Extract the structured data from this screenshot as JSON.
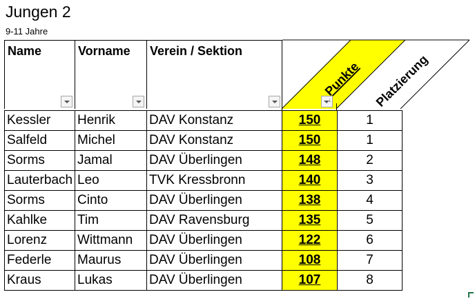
{
  "sheet": {
    "title": "Jungen 2",
    "subtitle": "9-11 Jahre"
  },
  "columns": {
    "name": "Name",
    "vorname": "Vorname",
    "verein": "Verein / Sektion",
    "punkte": "Punkte",
    "platzierung": "Platzierung"
  },
  "colors": {
    "highlight": "#ffff00",
    "grid": "#000000",
    "filter_button": "#f4f4f4"
  },
  "icons": {
    "filter": "dropdown-filter-icon",
    "sorted_filter": "sort-descending-filter-icon"
  },
  "rows": [
    {
      "name": "Kessler",
      "vorname": "Henrik",
      "verein": "DAV Konstanz",
      "punkte": "150",
      "platz": "1"
    },
    {
      "name": "Salfeld",
      "vorname": "Michel",
      "verein": "DAV Konstanz",
      "punkte": "150",
      "platz": "1"
    },
    {
      "name": "Sorms",
      "vorname": "Jamal",
      "verein": "DAV Überlingen",
      "punkte": "148",
      "platz": "2"
    },
    {
      "name": "Lauterbach",
      "vorname": "Leo",
      "verein": "TVK Kressbronn",
      "punkte": "140",
      "platz": "3"
    },
    {
      "name": "Sorms",
      "vorname": "Cinto",
      "verein": "DAV Überlingen",
      "punkte": "138",
      "platz": "4"
    },
    {
      "name": "Kahlke",
      "vorname": "Tim",
      "verein": "DAV Ravensburg",
      "punkte": "135",
      "platz": "5"
    },
    {
      "name": "Lorenz",
      "vorname": "Wittmann",
      "verein": "DAV Überlingen",
      "punkte": "122",
      "platz": "6"
    },
    {
      "name": "Federle",
      "vorname": "Maurus",
      "verein": "DAV Überlingen",
      "punkte": "108",
      "platz": "7"
    },
    {
      "name": "Kraus",
      "vorname": "Lukas",
      "verein": "DAV Überlingen",
      "punkte": "107",
      "platz": "8"
    }
  ]
}
